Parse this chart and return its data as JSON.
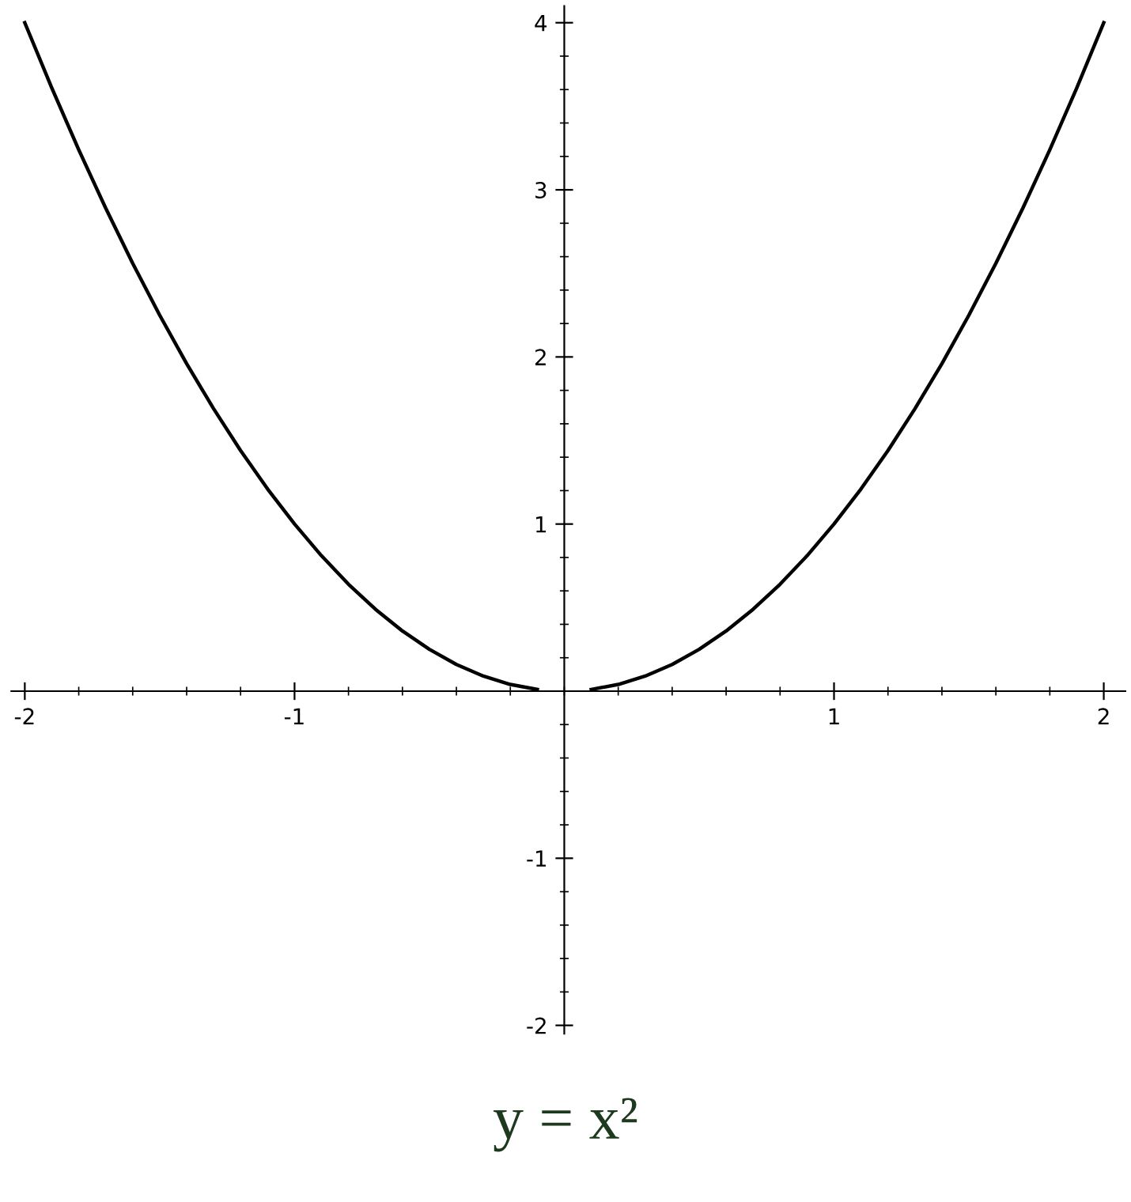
{
  "chart_data": {
    "type": "line",
    "series": [
      {
        "color": "#000000",
        "x": [
          -2,
          -1.9,
          -1.8,
          -1.7,
          -1.6,
          -1.5,
          -1.4,
          -1.3,
          -1.2,
          -1.1,
          -1,
          -0.9,
          -0.8,
          -0.7,
          -0.6,
          -0.5,
          -0.4,
          -0.3,
          -0.2,
          -0.1
        ],
        "values": [
          4,
          3.61,
          3.24,
          2.89,
          2.56,
          2.25,
          1.96,
          1.69,
          1.44,
          1.21,
          1,
          0.81,
          0.64,
          0.49,
          0.36,
          0.25,
          0.16,
          0.09,
          0.04,
          0.01
        ]
      },
      {
        "color": "#000000",
        "x": [
          0.1,
          0.2,
          0.3,
          0.4,
          0.5,
          0.6,
          0.7,
          0.8,
          0.9,
          1,
          1.1,
          1.2,
          1.3,
          1.4,
          1.5,
          1.6,
          1.7,
          1.8,
          1.9,
          2
        ],
        "values": [
          0.01,
          0.04,
          0.09,
          0.16,
          0.25,
          0.36,
          0.49,
          0.64,
          0.81,
          1,
          1.21,
          1.44,
          1.69,
          1.96,
          2.25,
          2.56,
          2.89,
          3.24,
          3.61,
          4
        ]
      }
    ],
    "xlim": [
      -2.05,
      2.08
    ],
    "ylim": [
      -2.05,
      4.1
    ],
    "xticks": [
      -2,
      -1,
      1,
      2
    ],
    "yticks": [
      -2,
      -1,
      1,
      2,
      3,
      4
    ],
    "annotations": [
      "y = x²"
    ],
    "grid": false,
    "legend": false,
    "marker": "none",
    "line_style": "solid"
  }
}
